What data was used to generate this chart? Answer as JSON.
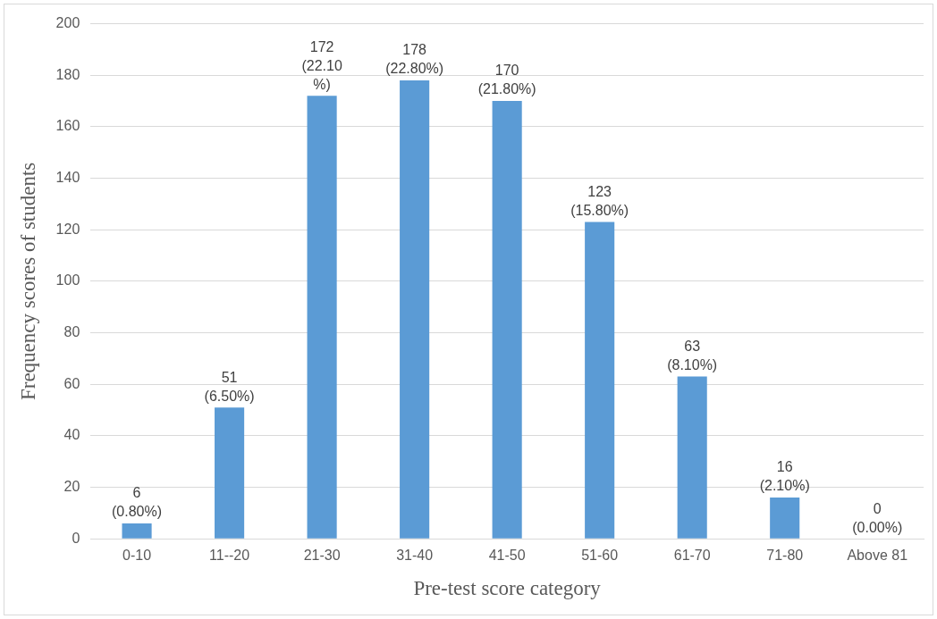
{
  "chart_data": {
    "type": "bar",
    "xlabel": "Pre-test score category",
    "ylabel": "Frequency scores of students",
    "categories": [
      "0-10",
      "11--20",
      "21-30",
      "31-40",
      "41-50",
      "51-60",
      "61-70",
      "71-80",
      "Above 81"
    ],
    "values": [
      6,
      51,
      172,
      178,
      170,
      123,
      63,
      16,
      0
    ],
    "value_labels": [
      "6 (0.80%)",
      "51 (6.50%)",
      "172 (22.10 %)",
      "178 (22.80%)",
      "170 (21.80%)",
      "123 (15.80%)",
      "63 (8.10%)",
      "16 (2.10%)",
      "0 (0.00%)"
    ],
    "color": "#5b9bd5",
    "ylim": [
      0,
      200
    ],
    "yticks": [
      0,
      20,
      40,
      60,
      80,
      100,
      120,
      140,
      160,
      180,
      200
    ],
    "grid": "y",
    "legend": false
  }
}
